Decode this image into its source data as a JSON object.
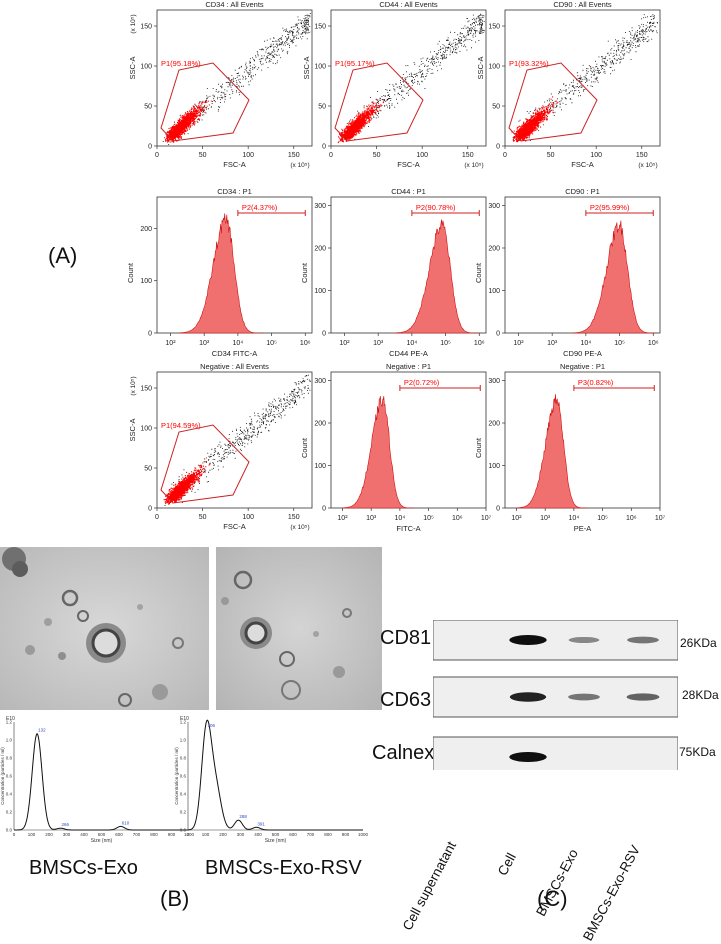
{
  "panel_labels": {
    "a": "(A)",
    "b": "(B)",
    "c": "(C)"
  },
  "flow_colors": {
    "events": "#ff0000",
    "gate": "#cc2222",
    "background_dots": "#111111"
  },
  "flow_axes": {
    "ssc": "SSC-A",
    "fsc": "FSC-A",
    "count": "Count",
    "scale": "(x 10⁵)",
    "scatter_ticks_x": [
      "0",
      "50",
      "100",
      "150"
    ],
    "scatter_ticks_y": [
      "0",
      "50",
      "100",
      "150"
    ],
    "hist_ticks_x": [
      "10²",
      "10³",
      "10⁴",
      "10⁵",
      "10⁶"
    ],
    "hist_ticks_x_alt": [
      "10²",
      "10³",
      "10⁴",
      "10⁵",
      "10⁶",
      "10⁷"
    ],
    "hist_ticks_y_200": [
      "0",
      "100",
      "200"
    ],
    "hist_ticks_y_300": [
      "0",
      "100",
      "200",
      "300"
    ]
  },
  "flow_panels": [
    {
      "type": "scatter",
      "title": "CD34 : All Events",
      "gate": "P1(95.18%)",
      "percent": 95.18
    },
    {
      "type": "scatter",
      "title": "CD44 : All Events",
      "gate": "P1(95.17%)",
      "percent": 95.17
    },
    {
      "type": "scatter",
      "title": "CD90 : All Events",
      "gate": "P1(93.32%)",
      "percent": 93.32
    },
    {
      "type": "histogram",
      "title": "CD34 : P1",
      "gate": "P2(4.37%)",
      "xlabel": "CD34 FITC-A",
      "percent": 4.37,
      "ymax": 250,
      "peak_log": 3.65
    },
    {
      "type": "histogram",
      "title": "CD44 : P1",
      "gate": "P2(90.78%)",
      "xlabel": "CD44 PE-A",
      "percent": 90.78,
      "ymax": 300,
      "peak_log": 4.9
    },
    {
      "type": "histogram",
      "title": "CD90 : P1",
      "gate": "P2(95.99%)",
      "xlabel": "CD90 PE-A",
      "percent": 95.99,
      "ymax": 300,
      "peak_log": 5.0
    },
    {
      "type": "scatter",
      "title": "Negative : All Events",
      "gate": "P1(94.59%)",
      "percent": 94.59
    },
    {
      "type": "histogram",
      "title": "Negative : P1",
      "gate": "P2(0.72%)",
      "xlabel": "FITC-A",
      "percent": 0.72,
      "ymax": 300,
      "peak_log": 3.4
    },
    {
      "type": "histogram",
      "title": "Negative : P1",
      "gate": "P3(0.82%)",
      "xlabel": "PE-A",
      "percent": 0.82,
      "ymax": 300,
      "peak_log": 3.4
    }
  ],
  "nta": {
    "ylabel": "Concentration (particles / ml)",
    "xlabel": "Size (nm)",
    "ytick_labels": [
      "0.0",
      "0.2",
      "0.4",
      "0.6",
      "0.8",
      "1.0",
      "1.2"
    ],
    "y_title": "E10",
    "xtick_labels": [
      "0",
      "100",
      "200",
      "300",
      "400",
      "500",
      "600",
      "700",
      "800",
      "900",
      "1000"
    ],
    "samples": [
      {
        "name": "BMSCs-Exo",
        "peaks": [
          {
            "size": 132,
            "height": 1.07,
            "label": "132"
          },
          {
            "size": 266,
            "height": 0.02,
            "label": "266"
          },
          {
            "size": 610,
            "height": 0.04,
            "label": "610"
          }
        ]
      },
      {
        "name": "BMSCs-Exo-RSV",
        "peaks": [
          {
            "size": 106,
            "height": 1.12,
            "label": "106"
          },
          {
            "size": 288,
            "height": 0.11,
            "label": "288"
          },
          {
            "size": 391,
            "height": 0.03,
            "label": "391"
          }
        ]
      }
    ]
  },
  "western_blot": {
    "lanes": [
      "Cell supernatant",
      "Cell",
      "BMSCs-Exo",
      "BMSCs-Exo-RSV"
    ],
    "bands": [
      {
        "protein": "CD81",
        "weight": "26KDa",
        "intensity": [
          0.0,
          1.0,
          0.35,
          0.45
        ]
      },
      {
        "protein": "CD63",
        "weight": "28KDa",
        "intensity": [
          0.0,
          0.9,
          0.45,
          0.55
        ]
      },
      {
        "protein": "Calnexin",
        "weight": "75KDa",
        "intensity": [
          0.0,
          1.0,
          0.0,
          0.0
        ]
      }
    ]
  }
}
